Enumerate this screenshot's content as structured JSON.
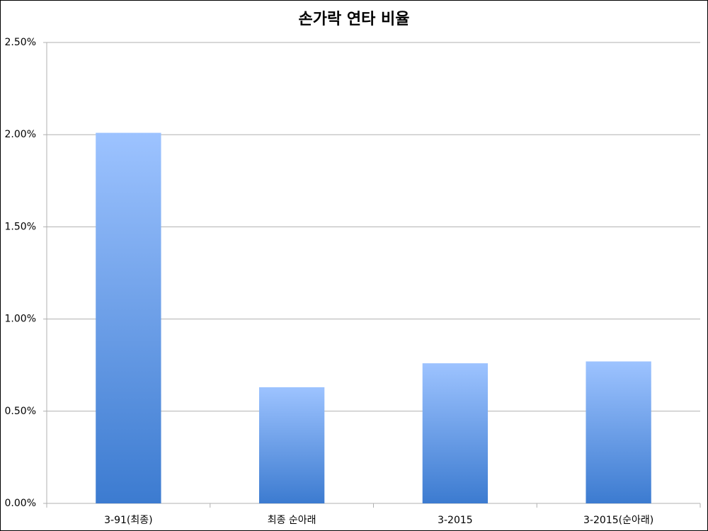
{
  "chart_data": {
    "type": "bar",
    "title": "손가락 연타 비율",
    "categories": [
      "3-91(최종)",
      "최종 순아래",
      "3-2015",
      "3-2015(순아래)"
    ],
    "values": [
      2.01,
      0.63,
      0.76,
      0.77
    ],
    "color": [
      "#9dc3ff",
      "#3c7bd0"
    ],
    "ylim": [
      0,
      2.5
    ],
    "yticks": [
      {
        "value": 0,
        "label": "0.00%"
      },
      {
        "value": 0.5,
        "label": "0.50%"
      },
      {
        "value": 1,
        "label": "1.00%"
      },
      {
        "value": 1.5,
        "label": "1.50%"
      },
      {
        "value": 2,
        "label": "2.00%"
      },
      {
        "value": 2.5,
        "label": "2.50%"
      }
    ],
    "grid": true
  }
}
